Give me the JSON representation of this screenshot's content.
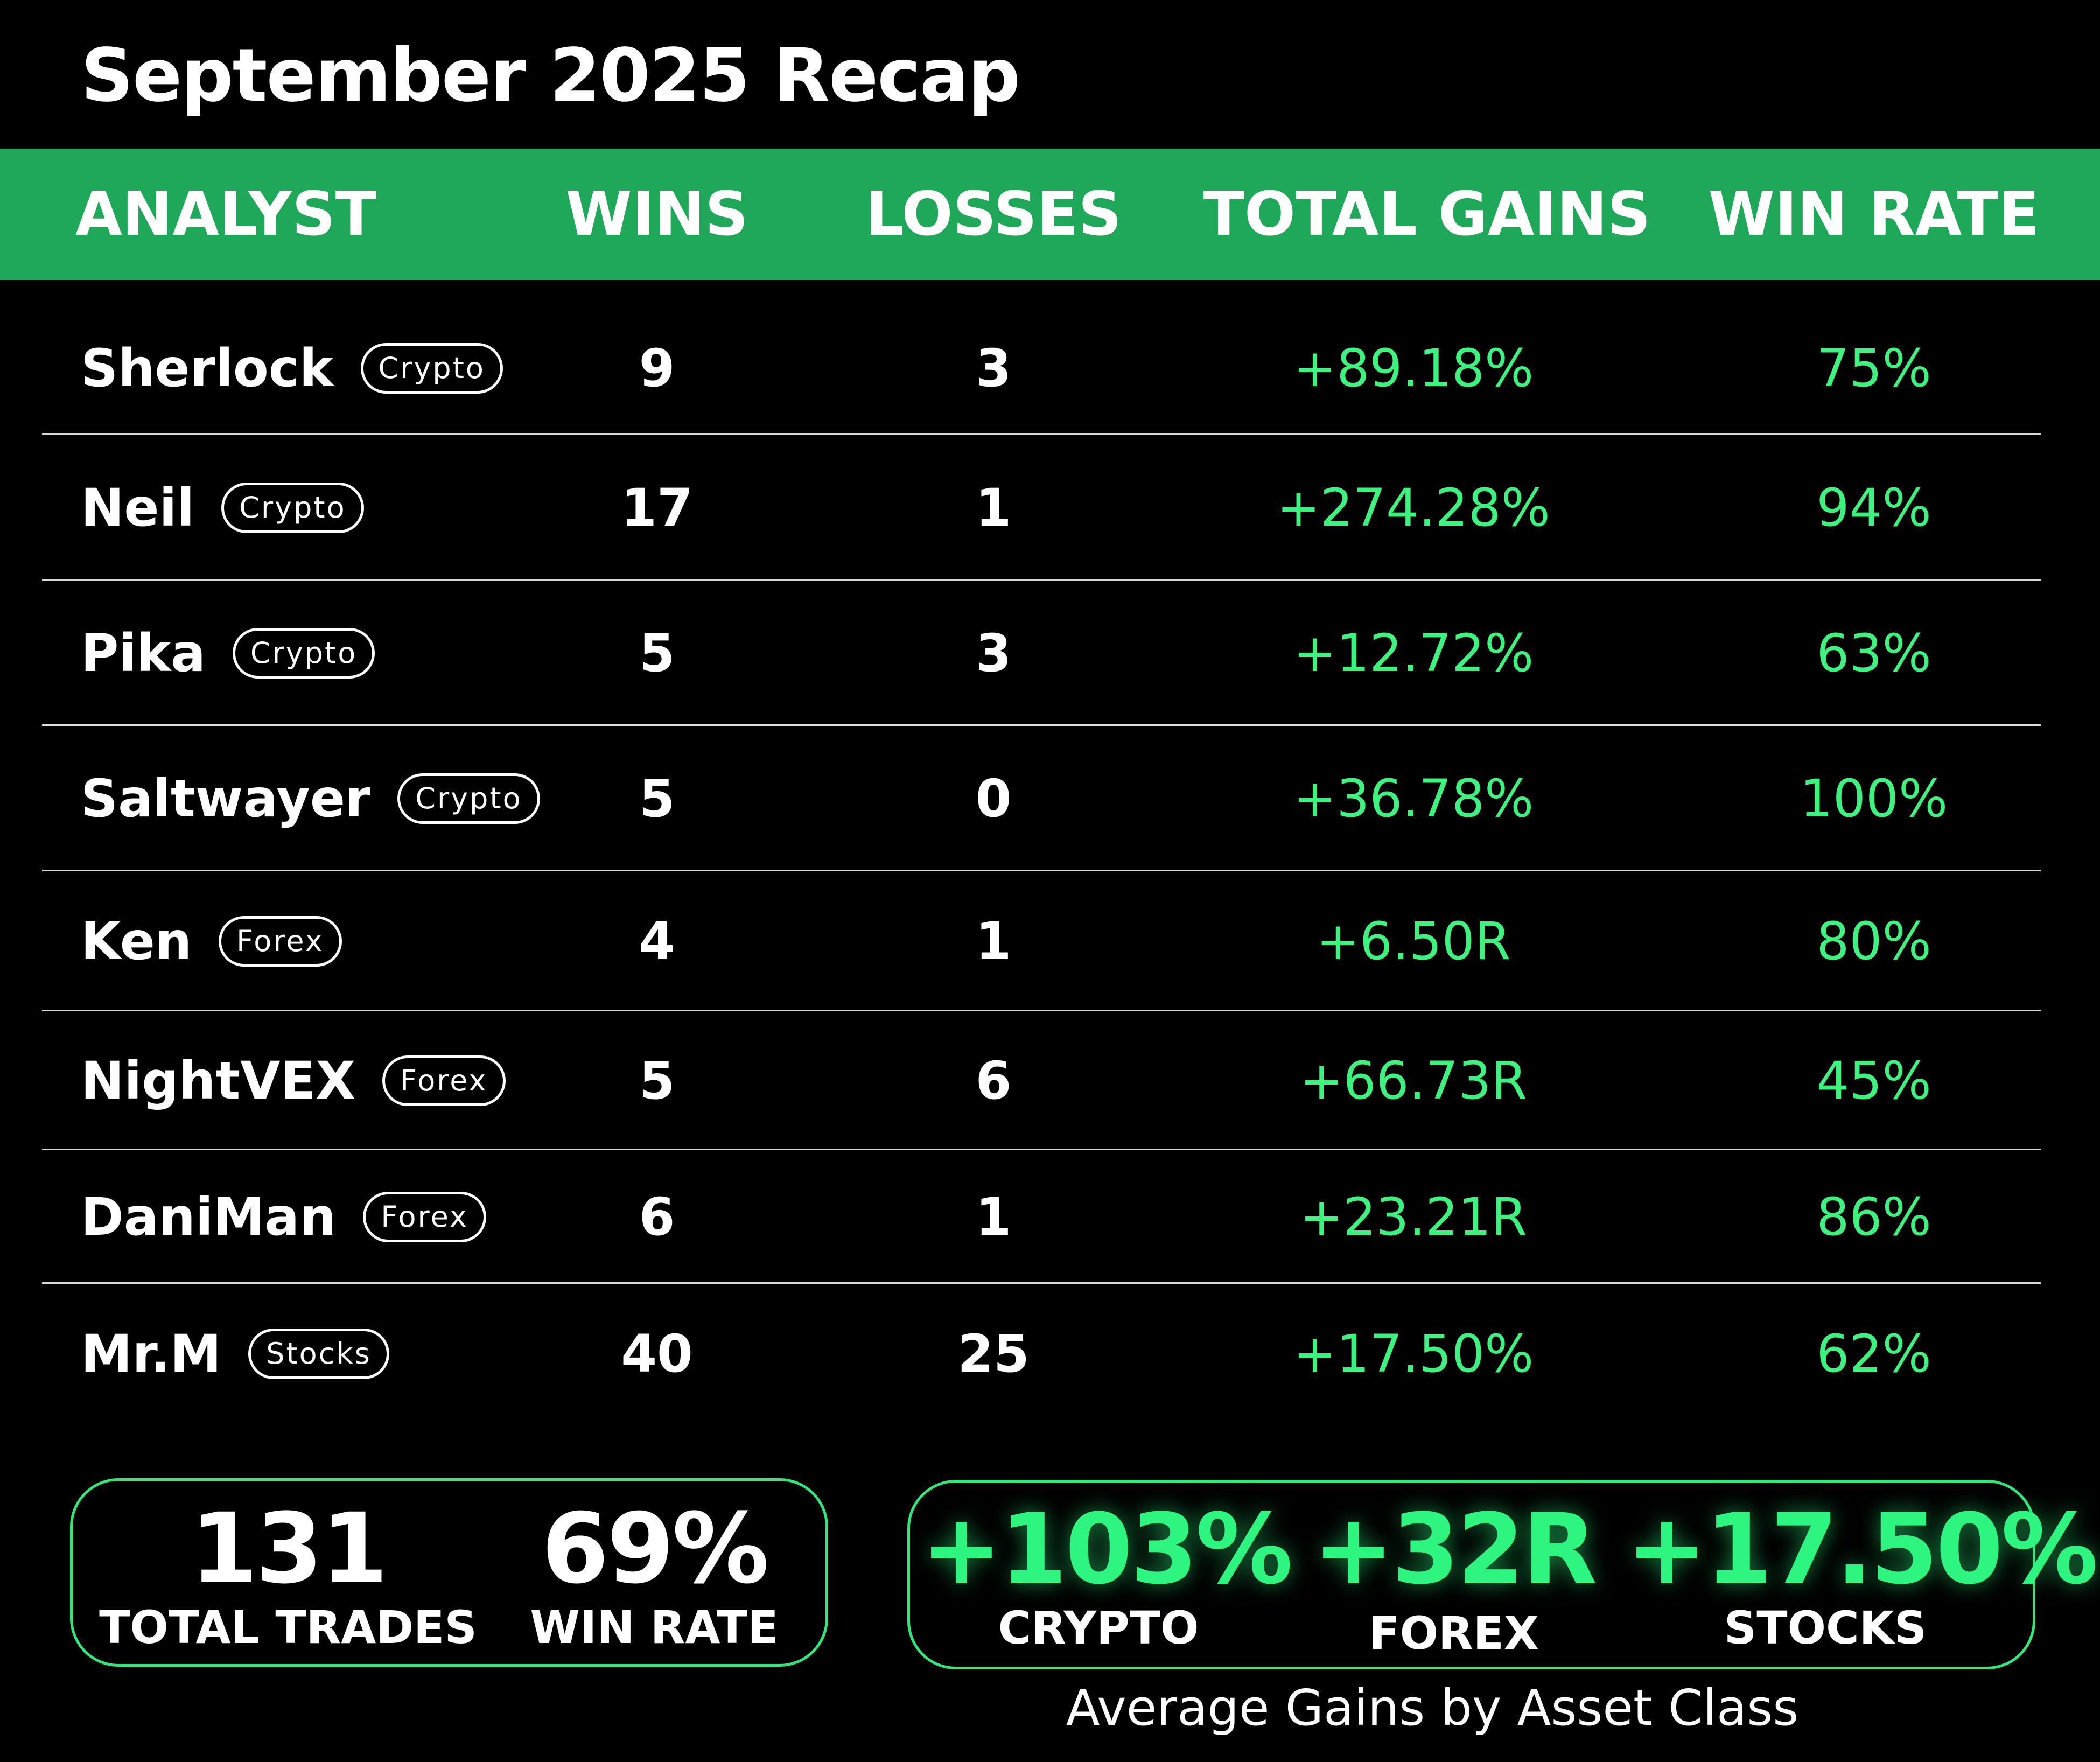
{
  "title": "September 2025 Recap",
  "header": {
    "analyst": "ANALYST",
    "wins": "WINS",
    "losses": "LOSSES",
    "total_gains": "TOTAL GAINS",
    "win_rate": "WIN RATE"
  },
  "rows": [
    {
      "name": "Sherlock",
      "tag": "Crypto",
      "wins": "9",
      "losses": "3",
      "gains": "+89.18%",
      "rate": "75%"
    },
    {
      "name": "Neil",
      "tag": "Crypto",
      "wins": "17",
      "losses": "1",
      "gains": "+274.28%",
      "rate": "94%"
    },
    {
      "name": "Pika",
      "tag": "Crypto",
      "wins": "5",
      "losses": "3",
      "gains": "+12.72%",
      "rate": "63%"
    },
    {
      "name": "Saltwayer",
      "tag": "Crypto",
      "wins": "5",
      "losses": "0",
      "gains": "+36.78%",
      "rate": "100%"
    },
    {
      "name": "Ken",
      "tag": "Forex",
      "wins": "4",
      "losses": "1",
      "gains": "+6.50R",
      "rate": "80%"
    },
    {
      "name": "NightVEX",
      "tag": "Forex",
      "wins": "5",
      "losses": "6",
      "gains": "+66.73R",
      "rate": "45%"
    },
    {
      "name": "DaniMan",
      "tag": "Forex",
      "wins": "6",
      "losses": "1",
      "gains": "+23.21R",
      "rate": "86%"
    },
    {
      "name": "Mr.M",
      "tag": "Stocks",
      "wins": "40",
      "losses": "25",
      "gains": "+17.50%",
      "rate": "62%"
    }
  ],
  "summary": {
    "total_trades": {
      "value": "131",
      "label": "TOTAL TRADES"
    },
    "win_rate": {
      "value": "69%",
      "label": "WIN RATE"
    }
  },
  "asset_classes": {
    "crypto": {
      "value": "+103%",
      "label": "CRYPTO"
    },
    "forex": {
      "value": "+32R",
      "label": "FOREX"
    },
    "stocks": {
      "value": "+17.50%",
      "label": "STOCKS"
    },
    "caption": "Average Gains by Asset Class"
  },
  "colors": {
    "header_bg": "#1fa75a",
    "gain_text": "#3df27e",
    "accent": "#2ef57f",
    "background": "#000000"
  }
}
